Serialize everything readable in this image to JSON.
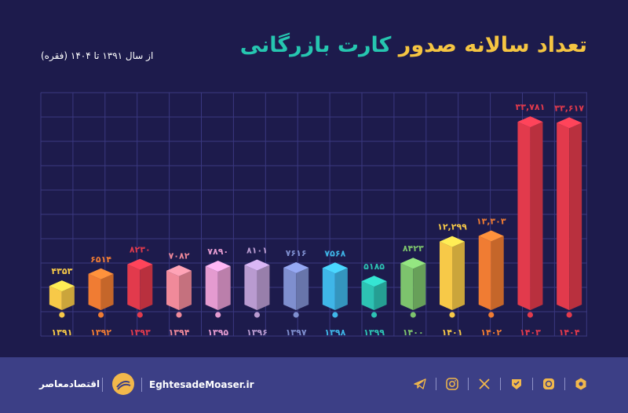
{
  "header": {
    "title_part1": "تعداد سالانه صدور",
    "title_part2": "کارت بازرگانی",
    "subtitle": "از سال ۱۳۹۱ تا ۱۴۰۴ (فقره)"
  },
  "chart_data": {
    "type": "bar",
    "title": "تعداد سالانه صدور کارت بازرگانی",
    "subtitle": "از سال ۱۳۹۱ تا ۱۴۰۴ (فقره)",
    "categories": [
      "۱۳۹۱",
      "۱۳۹۲",
      "۱۳۹۳",
      "۱۳۹۴",
      "۱۳۹۵",
      "۱۳۹۶",
      "۱۳۹۷",
      "۱۳۹۸",
      "۱۳۹۹",
      "۱۴۰۰",
      "۱۴۰۱",
      "۱۴۰۲",
      "۱۴۰۳",
      "۱۴۰۴"
    ],
    "values": [
      4353,
      6514,
      8230,
      7082,
      7890,
      8101,
      7616,
      7568,
      5185,
      8423,
      12299,
      13303,
      33781,
      33617
    ],
    "value_labels": [
      "۴۳۵۳",
      "۶۵۱۴",
      "۸۲۳۰",
      "۷۰۸۲",
      "۷۸۹۰",
      "۸۱۰۱",
      "۷۶۱۶",
      "۷۵۶۸",
      "۵۱۸۵",
      "۸۴۲۳",
      "۱۲,۲۹۹",
      "۱۳,۳۰۳",
      "۳۳,۷۸۱",
      "۳۳,۶۱۷"
    ],
    "colors": [
      "#f7c948",
      "#f07c33",
      "#e23a4c",
      "#f08a9a",
      "#e49bd0",
      "#b99bd0",
      "#7f8fcf",
      "#3fb6e8",
      "#2dc2b3",
      "#7dc36d",
      "#f7c948",
      "#f07c33",
      "#e23a4c",
      "#e23a4c"
    ],
    "label_colors": [
      "#f7c948",
      "#f07c33",
      "#e23a4c",
      "#f08a9a",
      "#e49bd0",
      "#b99bd0",
      "#7f8fcf",
      "#3fb6e8",
      "#2dc2b3",
      "#7dc36d",
      "#f7c948",
      "#f07c33",
      "#e23a4c",
      "#e23a4c"
    ],
    "ylim": [
      0,
      36000
    ],
    "grid": true
  },
  "footer": {
    "brand": "اقتصادمعاصر",
    "site_prefix": "Eghtesade",
    "site_main": "Moaser",
    "site_suffix": ".ir",
    "icons": [
      "aparat-icon",
      "eitaa-icon",
      "bale-icon",
      "x-icon",
      "instagram-icon",
      "telegram-icon"
    ]
  },
  "colors": {
    "background": "#1d1b4c",
    "footer": "#3c3f86",
    "title_yellow": "#f5c542",
    "title_teal": "#26c6b0",
    "grid": "#3a3880"
  }
}
